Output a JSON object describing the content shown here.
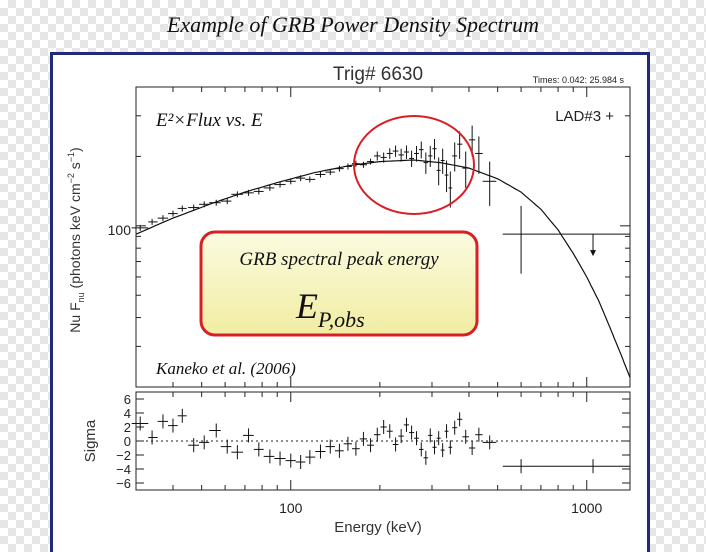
{
  "header": {
    "title": "Example of GRB Power Density Spectrum"
  },
  "chart_data": [
    {
      "type": "scatter",
      "title": "Trig# 6630",
      "subtitle": "Times: 0.042: 25.984 s",
      "detector_label": "LAD#3 +",
      "annotation_formula": "E²×Flux vs. E",
      "annotation_citation": "Kaneko et al. (2006)",
      "callout": {
        "line1": "GRB spectral peak energy",
        "symbol_main": "E",
        "symbol_sub": "P,obs"
      },
      "ylabel": "Nu F",
      "ylabel_sub": "nu",
      "ylabel_units": " (photons keV cm",
      "ylabel_exp1": "−2",
      "ylabel_mid": " s",
      "ylabel_exp2": "−1",
      "ylabel_close": ")",
      "x_scale": "log",
      "y_scale": "log",
      "xlim": [
        30,
        1400
      ],
      "ylim": [
        20,
        400
      ],
      "y_tick_labels": [
        "100"
      ],
      "series": [
        {
          "kind": "model",
          "points": [
            [
              30,
              92
            ],
            [
              40,
              108
            ],
            [
              55,
              126
            ],
            [
              70,
              140
            ],
            [
              90,
              154
            ],
            [
              120,
              170
            ],
            [
              160,
              183
            ],
            [
              200,
              190
            ],
            [
              260,
              193
            ],
            [
              320,
              188
            ],
            [
              400,
              178
            ],
            [
              500,
              160
            ],
            [
              600,
              140
            ],
            [
              700,
              118
            ],
            [
              800,
              96
            ],
            [
              900,
              76
            ],
            [
              1000,
              60
            ],
            [
              1100,
              47
            ],
            [
              1200,
              36
            ],
            [
              1300,
              28
            ],
            [
              1400,
              22
            ]
          ]
        },
        {
          "kind": "data",
          "points": [
            {
              "x": 31,
              "y": 98,
              "xl": 29,
              "xh": 33
            },
            {
              "x": 34,
              "y": 104,
              "xl": 33,
              "xh": 35.5
            },
            {
              "x": 37,
              "y": 108,
              "xl": 35.5,
              "xh": 38.5
            },
            {
              "x": 40,
              "y": 113,
              "xl": 38.5,
              "xh": 41.5
            },
            {
              "x": 43,
              "y": 119,
              "xl": 41.5,
              "xh": 44.5
            },
            {
              "x": 47,
              "y": 120,
              "xl": 45,
              "xh": 49
            },
            {
              "x": 51,
              "y": 124,
              "xl": 49,
              "xh": 53
            },
            {
              "x": 56,
              "y": 126,
              "xl": 53,
              "xh": 58
            },
            {
              "x": 61,
              "y": 128,
              "xl": 58,
              "xh": 63
            },
            {
              "x": 66,
              "y": 137,
              "xl": 63,
              "xh": 69
            },
            {
              "x": 72,
              "y": 139,
              "xl": 69,
              "xh": 75
            },
            {
              "x": 78,
              "y": 141,
              "xl": 75,
              "xh": 81
            },
            {
              "x": 85,
              "y": 146,
              "xl": 81,
              "xh": 88
            },
            {
              "x": 92,
              "y": 151,
              "xl": 88,
              "xh": 96
            },
            {
              "x": 100,
              "y": 156,
              "xl": 96,
              "xh": 104
            },
            {
              "x": 108,
              "y": 161,
              "xl": 104,
              "xh": 112
            },
            {
              "x": 116,
              "y": 159,
              "xl": 112,
              "xh": 121
            },
            {
              "x": 126,
              "y": 167,
              "xl": 121,
              "xh": 131
            },
            {
              "x": 136,
              "y": 171,
              "xl": 131,
              "xh": 141
            },
            {
              "x": 146,
              "y": 177,
              "xl": 141,
              "xh": 151
            },
            {
              "x": 156,
              "y": 181,
              "xl": 151,
              "xh": 161
            },
            {
              "x": 166,
              "y": 186,
              "xl": 161,
              "xh": 171
            },
            {
              "x": 176,
              "y": 184,
              "xl": 171,
              "xh": 181
            },
            {
              "x": 186,
              "y": 190,
              "xl": 181,
              "xh": 191
            },
            {
              "x": 196,
              "y": 201,
              "xl": 191,
              "xh": 201,
              "yl": 192,
              "yh": 210
            },
            {
              "x": 206,
              "y": 198,
              "xl": 201,
              "xh": 211,
              "yl": 188,
              "yh": 208
            },
            {
              "x": 216,
              "y": 206,
              "xl": 211,
              "xh": 221,
              "yl": 195,
              "yh": 217
            },
            {
              "x": 226,
              "y": 211,
              "xl": 221,
              "xh": 231,
              "yl": 199,
              "yh": 223
            },
            {
              "x": 236,
              "y": 203,
              "xl": 231,
              "xh": 241,
              "yl": 190,
              "yh": 216
            },
            {
              "x": 246,
              "y": 209,
              "xl": 241,
              "xh": 251,
              "yl": 195,
              "yh": 223
            },
            {
              "x": 256,
              "y": 196,
              "xl": 251,
              "xh": 261,
              "yl": 180,
              "yh": 212
            },
            {
              "x": 266,
              "y": 206,
              "xl": 261,
              "xh": 271,
              "yl": 190,
              "yh": 222
            },
            {
              "x": 276,
              "y": 214,
              "xl": 271,
              "xh": 281,
              "yl": 196,
              "yh": 232
            },
            {
              "x": 286,
              "y": 188,
              "xl": 281,
              "xh": 291,
              "yl": 168,
              "yh": 208
            },
            {
              "x": 296,
              "y": 201,
              "xl": 291,
              "xh": 301,
              "yl": 180,
              "yh": 222
            },
            {
              "x": 306,
              "y": 216,
              "xl": 301,
              "xh": 311,
              "yl": 194,
              "yh": 238
            },
            {
              "x": 316,
              "y": 174,
              "xl": 311,
              "xh": 321,
              "yl": 150,
              "yh": 198
            },
            {
              "x": 326,
              "y": 192,
              "xl": 321,
              "xh": 331,
              "yl": 168,
              "yh": 216
            },
            {
              "x": 336,
              "y": 166,
              "xl": 331,
              "xh": 341,
              "yl": 140,
              "yh": 192
            },
            {
              "x": 346,
              "y": 146,
              "xl": 341,
              "xh": 351,
              "yl": 120,
              "yh": 172
            },
            {
              "x": 358,
              "y": 201,
              "xl": 351,
              "xh": 365,
              "yl": 172,
              "yh": 230
            },
            {
              "x": 372,
              "y": 226,
              "xl": 365,
              "xh": 380,
              "yl": 195,
              "yh": 257
            },
            {
              "x": 390,
              "y": 178,
              "xl": 380,
              "xh": 400,
              "yl": 146,
              "yh": 210
            },
            {
              "x": 410,
              "y": 236,
              "xl": 400,
              "xh": 420,
              "yl": 200,
              "yh": 272
            },
            {
              "x": 432,
              "y": 206,
              "xl": 420,
              "xh": 445,
              "yl": 168,
              "yh": 244
            },
            {
              "x": 470,
              "y": 156,
              "xl": 445,
              "xh": 495,
              "yl": 122,
              "yh": 190
            },
            {
              "x": 600,
              "y": 92,
              "xl": 520,
              "xh": 690,
              "yl": 62,
              "yh": 122
            },
            {
              "x": 1050,
              "y": 92,
              "xl": 690,
              "xh": 1400,
              "upper_limit": true
            }
          ]
        }
      ]
    },
    {
      "type": "scatter",
      "xlabel": "Energy (keV)",
      "ylabel": "Sigma",
      "x_scale": "log",
      "xlim": [
        30,
        1400
      ],
      "ylim": [
        -7,
        7
      ],
      "x_tick_labels": [
        "100",
        "1000"
      ],
      "y_ticks": [
        -6,
        -4,
        -2,
        0,
        2,
        4,
        6
      ],
      "y_tick_labels": [
        "−6",
        "−4",
        "−2",
        "0",
        "2",
        "4",
        "6"
      ],
      "reference_line": 0,
      "series": [
        {
          "kind": "residuals",
          "points": [
            {
              "x": 31,
              "y": 2.5,
              "xl": 29,
              "xh": 33
            },
            {
              "x": 34,
              "y": 0.5,
              "xl": 33,
              "xh": 35.5
            },
            {
              "x": 37,
              "y": 2.8,
              "xl": 35.5,
              "xh": 38.5
            },
            {
              "x": 40,
              "y": 2.2,
              "xl": 38.5,
              "xh": 41.5
            },
            {
              "x": 43,
              "y": 3.6,
              "xl": 41.5,
              "xh": 44.5
            },
            {
              "x": 47,
              "y": -0.6,
              "xl": 45,
              "xh": 49
            },
            {
              "x": 51,
              "y": -0.2,
              "xl": 49,
              "xh": 53
            },
            {
              "x": 56,
              "y": 1.5,
              "xl": 53,
              "xh": 58
            },
            {
              "x": 61,
              "y": -0.8,
              "xl": 58,
              "xh": 63
            },
            {
              "x": 66,
              "y": -1.6,
              "xl": 63,
              "xh": 69
            },
            {
              "x": 72,
              "y": 0.8,
              "xl": 69,
              "xh": 75
            },
            {
              "x": 78,
              "y": -1.2,
              "xl": 75,
              "xh": 81
            },
            {
              "x": 85,
              "y": -2.2,
              "xl": 81,
              "xh": 88
            },
            {
              "x": 92,
              "y": -2.5,
              "xl": 88,
              "xh": 96
            },
            {
              "x": 100,
              "y": -2.8,
              "xl": 96,
              "xh": 104
            },
            {
              "x": 108,
              "y": -3.0,
              "xl": 104,
              "xh": 112
            },
            {
              "x": 116,
              "y": -2.3,
              "xl": 112,
              "xh": 121
            },
            {
              "x": 126,
              "y": -1.5,
              "xl": 121,
              "xh": 131
            },
            {
              "x": 136,
              "y": -0.8,
              "xl": 131,
              "xh": 141
            },
            {
              "x": 146,
              "y": -1.4,
              "xl": 141,
              "xh": 151
            },
            {
              "x": 156,
              "y": -0.4,
              "xl": 151,
              "xh": 161
            },
            {
              "x": 166,
              "y": -1.1,
              "xl": 161,
              "xh": 171
            },
            {
              "x": 176,
              "y": 0.3,
              "xl": 171,
              "xh": 181
            },
            {
              "x": 186,
              "y": -0.6,
              "xl": 181,
              "xh": 191
            },
            {
              "x": 196,
              "y": 0.9,
              "xl": 191,
              "xh": 201
            },
            {
              "x": 206,
              "y": 2.0,
              "xl": 201,
              "xh": 211
            },
            {
              "x": 216,
              "y": 1.4,
              "xl": 211,
              "xh": 221
            },
            {
              "x": 226,
              "y": -0.5,
              "xl": 221,
              "xh": 231
            },
            {
              "x": 236,
              "y": 0.7,
              "xl": 231,
              "xh": 241
            },
            {
              "x": 246,
              "y": 2.3,
              "xl": 241,
              "xh": 251
            },
            {
              "x": 256,
              "y": 1.2,
              "xl": 251,
              "xh": 261
            },
            {
              "x": 266,
              "y": 0.4,
              "xl": 261,
              "xh": 271
            },
            {
              "x": 276,
              "y": -1.2,
              "xl": 271,
              "xh": 281
            },
            {
              "x": 286,
              "y": -2.4,
              "xl": 281,
              "xh": 291
            },
            {
              "x": 296,
              "y": 0.8,
              "xl": 291,
              "xh": 301
            },
            {
              "x": 306,
              "y": -0.9,
              "xl": 301,
              "xh": 311
            },
            {
              "x": 316,
              "y": 0.4,
              "xl": 311,
              "xh": 321
            },
            {
              "x": 326,
              "y": -1.3,
              "xl": 321,
              "xh": 331
            },
            {
              "x": 336,
              "y": 1.4,
              "xl": 331,
              "xh": 341
            },
            {
              "x": 346,
              "y": -0.9,
              "xl": 341,
              "xh": 351
            },
            {
              "x": 358,
              "y": 1.9,
              "xl": 351,
              "xh": 365
            },
            {
              "x": 372,
              "y": 3.1,
              "xl": 365,
              "xh": 380
            },
            {
              "x": 390,
              "y": 0.6,
              "xl": 380,
              "xh": 400
            },
            {
              "x": 410,
              "y": -1.0,
              "xl": 400,
              "xh": 420
            },
            {
              "x": 432,
              "y": 0.9,
              "xl": 420,
              "xh": 445
            },
            {
              "x": 470,
              "y": -0.2,
              "xl": 445,
              "xh": 495
            },
            {
              "x": 600,
              "y": -3.6,
              "xl": 520,
              "xh": 690
            },
            {
              "x": 1050,
              "y": -3.6,
              "xl": 690,
              "xh": 1400
            }
          ]
        }
      ]
    }
  ]
}
